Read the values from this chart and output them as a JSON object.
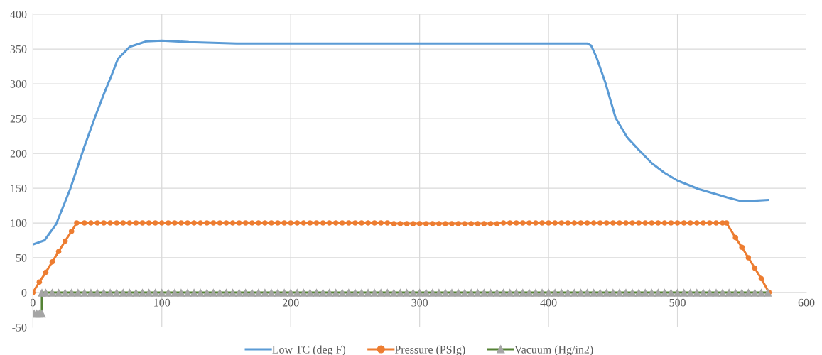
{
  "chart_data": {
    "type": "line",
    "xlim": [
      0,
      600
    ],
    "xticks": [
      0,
      100,
      200,
      300,
      400,
      500,
      600
    ],
    "ylim": [
      -50,
      400
    ],
    "yticks": [
      -50,
      0,
      50,
      100,
      150,
      200,
      250,
      300,
      350,
      400
    ],
    "grid": true,
    "legend": "bottom",
    "series": [
      {
        "name": "Low TC (deg F)",
        "color": "#5b9bd5",
        "marker": "none",
        "x": [
          0,
          9,
          18,
          29,
          40,
          48,
          55,
          61,
          66,
          75,
          88,
          100,
          121,
          158,
          200,
          300,
          400,
          430,
          433,
          437,
          444,
          452,
          461,
          470,
          480,
          490,
          500,
          516,
          538,
          548,
          560,
          570
        ],
        "values": [
          69,
          75,
          98,
          149,
          210,
          251,
          285,
          312,
          336,
          353,
          361,
          362,
          360,
          358,
          358,
          358,
          358,
          358,
          355,
          339,
          302,
          251,
          223,
          205,
          186,
          172,
          161,
          149,
          137,
          132,
          132,
          133
        ]
      },
      {
        "name": "Pressure (PSIg)",
        "color": "#ed7d31",
        "marker": "circle",
        "x": [
          0,
          5,
          10,
          15,
          20,
          25,
          30,
          34,
          40,
          45,
          50,
          55,
          60,
          65,
          70,
          75,
          80,
          85,
          90,
          95,
          100,
          105,
          110,
          115,
          120,
          125,
          130,
          135,
          140,
          145,
          150,
          155,
          160,
          165,
          170,
          175,
          180,
          185,
          190,
          195,
          200,
          205,
          210,
          215,
          220,
          225,
          230,
          235,
          240,
          245,
          250,
          255,
          260,
          265,
          270,
          275,
          280,
          285,
          290,
          295,
          300,
          305,
          310,
          315,
          320,
          325,
          330,
          335,
          340,
          345,
          350,
          355,
          360,
          365,
          370,
          375,
          380,
          385,
          390,
          395,
          400,
          405,
          410,
          415,
          420,
          425,
          430,
          435,
          440,
          445,
          450,
          455,
          460,
          465,
          470,
          475,
          480,
          485,
          490,
          495,
          500,
          505,
          510,
          515,
          520,
          525,
          530,
          535,
          538,
          545,
          550,
          555,
          560,
          565,
          571
        ],
        "values": [
          0,
          15,
          29,
          44,
          59,
          74,
          88,
          100,
          100,
          100,
          100,
          100,
          100,
          100,
          100,
          100,
          100,
          100,
          100,
          100,
          100,
          100,
          100,
          100,
          100,
          100,
          100,
          100,
          100,
          100,
          100,
          100,
          100,
          100,
          100,
          100,
          100,
          100,
          100,
          100,
          100,
          100,
          100,
          100,
          100,
          100,
          100,
          100,
          100,
          100,
          100,
          100,
          100,
          100,
          100,
          100,
          99,
          99,
          99,
          99,
          99,
          99,
          99,
          99,
          99,
          99,
          99,
          99,
          99,
          99,
          99,
          99,
          99,
          100,
          100,
          100,
          100,
          100,
          100,
          100,
          100,
          100,
          100,
          100,
          100,
          100,
          100,
          100,
          100,
          100,
          100,
          100,
          100,
          100,
          100,
          100,
          100,
          100,
          100,
          100,
          100,
          100,
          100,
          100,
          100,
          100,
          100,
          100,
          100,
          79,
          65,
          50,
          35,
          20,
          0
        ]
      },
      {
        "name": "Vacuum (Hg/in2)",
        "color": "#548235",
        "marker": "triangle",
        "x": [
          1,
          3,
          5,
          7,
          7,
          10,
          15,
          20,
          25,
          30,
          35,
          40,
          45,
          50,
          55,
          60,
          65,
          70,
          75,
          80,
          85,
          90,
          95,
          100,
          105,
          110,
          115,
          120,
          125,
          130,
          135,
          140,
          145,
          150,
          155,
          160,
          165,
          170,
          175,
          180,
          185,
          190,
          195,
          200,
          205,
          210,
          215,
          220,
          225,
          230,
          235,
          240,
          245,
          250,
          255,
          260,
          265,
          270,
          275,
          280,
          285,
          290,
          295,
          300,
          305,
          310,
          315,
          320,
          325,
          330,
          335,
          340,
          345,
          350,
          355,
          360,
          365,
          370,
          375,
          380,
          385,
          390,
          395,
          400,
          405,
          410,
          415,
          420,
          425,
          430,
          435,
          440,
          445,
          450,
          455,
          460,
          465,
          470,
          475,
          480,
          485,
          490,
          495,
          500,
          505,
          510,
          515,
          520,
          525,
          530,
          535,
          540,
          545,
          550,
          555,
          560,
          565,
          570
        ],
        "values": [
          -30,
          -30,
          -30,
          -30,
          0,
          0,
          0,
          0,
          0,
          0,
          0,
          0,
          0,
          0,
          0,
          0,
          0,
          0,
          0,
          0,
          0,
          0,
          0,
          0,
          0,
          0,
          0,
          0,
          0,
          0,
          0,
          0,
          0,
          0,
          0,
          0,
          0,
          0,
          0,
          0,
          0,
          0,
          0,
          0,
          0,
          0,
          0,
          0,
          0,
          0,
          0,
          0,
          0,
          0,
          0,
          0,
          0,
          0,
          0,
          0,
          0,
          0,
          0,
          0,
          0,
          0,
          0,
          0,
          0,
          0,
          0,
          0,
          0,
          0,
          0,
          0,
          0,
          0,
          0,
          0,
          0,
          0,
          0,
          0,
          0,
          0,
          0,
          0,
          0,
          0,
          0,
          0,
          0,
          0,
          0,
          0,
          0,
          0,
          0,
          0,
          0,
          0,
          0,
          0,
          0,
          0,
          0,
          0,
          0,
          0,
          0,
          0,
          0,
          0,
          0,
          0,
          0,
          0
        ],
        "colors": [
          "#a5a5a5",
          "#a5a5a5",
          "#a5a5a5",
          "#a5a5a5",
          "#a5a5a5",
          "#a5a5a5",
          "#a5a5a5",
          "#a5a5a5",
          "#a5a5a5",
          "#a5a5a5",
          "#a5a5a5",
          "#a5a5a5",
          "#a5a5a5",
          "#a5a5a5",
          "#a5a5a5",
          "#a5a5a5",
          "#a5a5a5",
          "#a5a5a5",
          "#a5a5a5",
          "#a5a5a5",
          "#a5a5a5",
          "#a5a5a5",
          "#a5a5a5",
          "#a5a5a5",
          "#a5a5a5",
          "#a5a5a5",
          "#a5a5a5",
          "#a5a5a5",
          "#a5a5a5",
          "#a5a5a5",
          "#a5a5a5",
          "#a5a5a5",
          "#a5a5a5",
          "#a5a5a5",
          "#a5a5a5",
          "#a5a5a5",
          "#a5a5a5",
          "#a5a5a5",
          "#a5a5a5",
          "#a5a5a5",
          "#a5a5a5",
          "#a5a5a5",
          "#a5a5a5",
          "#a5a5a5",
          "#a5a5a5",
          "#a5a5a5",
          "#a5a5a5",
          "#a5a5a5",
          "#a5a5a5",
          "#a5a5a5",
          "#a5a5a5",
          "#a5a5a5",
          "#a5a5a5",
          "#a5a5a5",
          "#a5a5a5",
          "#a5a5a5",
          "#a5a5a5",
          "#a5a5a5",
          "#a5a5a5",
          "#a5a5a5",
          "#a5a5a5",
          "#a5a5a5",
          "#a5a5a5",
          "#a5a5a5",
          "#a5a5a5",
          "#a5a5a5",
          "#a5a5a5",
          "#a5a5a5",
          "#a5a5a5",
          "#a5a5a5",
          "#a5a5a5",
          "#a5a5a5",
          "#a5a5a5",
          "#a5a5a5",
          "#a5a5a5",
          "#a5a5a5",
          "#a5a5a5",
          "#a5a5a5",
          "#a5a5a5",
          "#a5a5a5",
          "#a5a5a5",
          "#a5a5a5",
          "#a5a5a5",
          "#a5a5a5",
          "#a5a5a5",
          "#a5a5a5",
          "#a5a5a5",
          "#a5a5a5",
          "#a5a5a5",
          "#a5a5a5",
          "#a5a5a5",
          "#a5a5a5",
          "#a5a5a5",
          "#a5a5a5",
          "#a5a5a5",
          "#a5a5a5",
          "#a5a5a5",
          "#a5a5a5",
          "#a5a5a5",
          "#a5a5a5",
          "#a5a5a5",
          "#a5a5a5",
          "#a5a5a5",
          "#a5a5a5",
          "#a5a5a5",
          "#a5a5a5",
          "#a5a5a5",
          "#a5a5a5",
          "#a5a5a5",
          "#a5a5a5",
          "#a5a5a5",
          "#a5a5a5",
          "#a5a5a5",
          "#a5a5a5",
          "#a5a5a5",
          "#a5a5a5",
          "#a5a5a5",
          "#a5a5a5"
        ]
      }
    ]
  }
}
